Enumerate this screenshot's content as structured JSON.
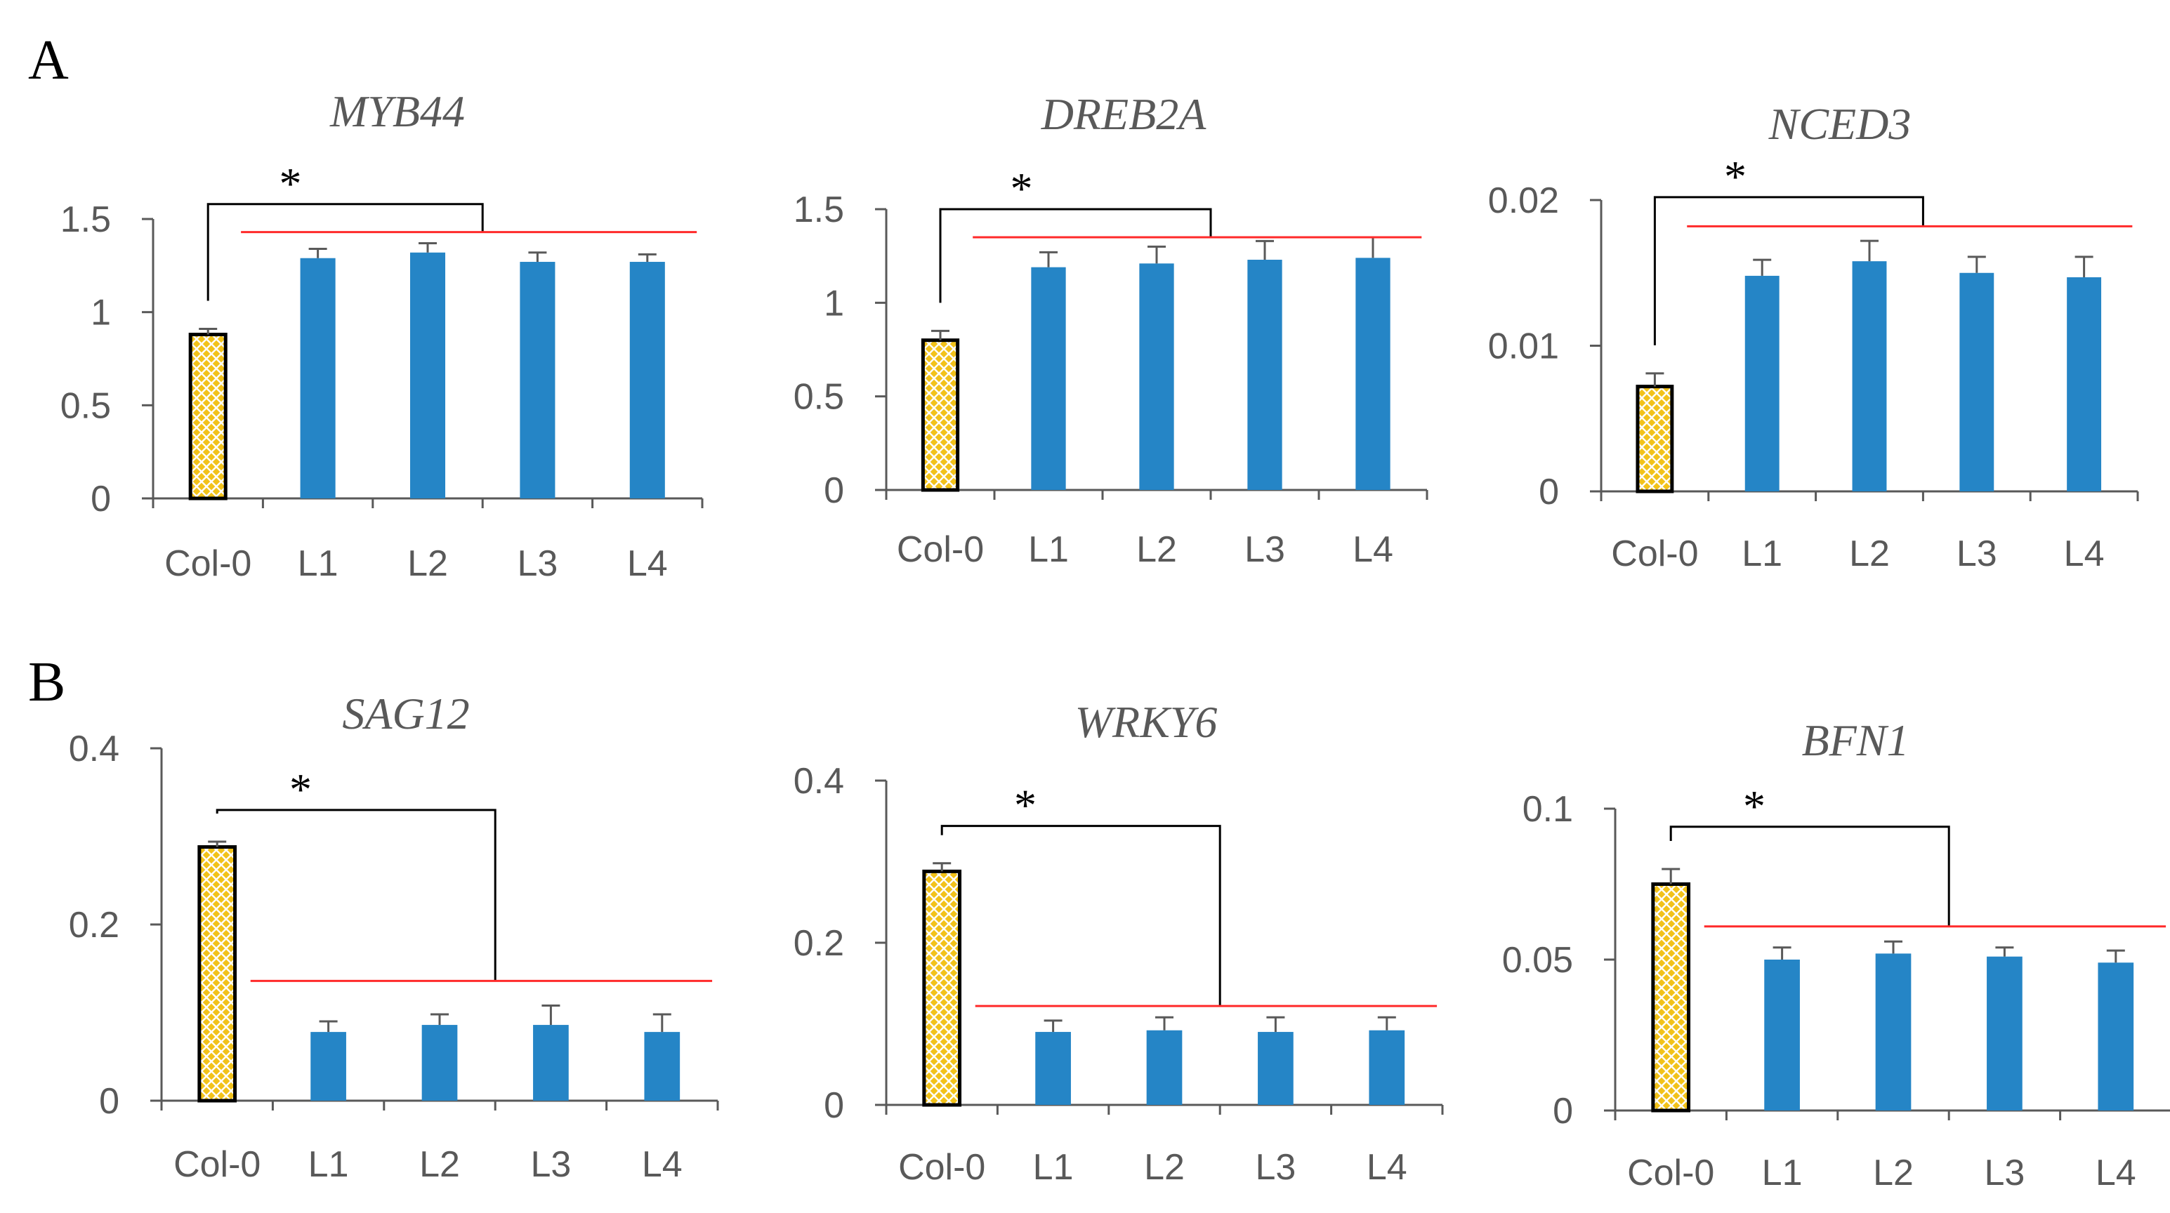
{
  "panels": [
    {
      "letter": "A"
    },
    {
      "letter": "B"
    }
  ],
  "colors": {
    "control_fill": "#f2c21a",
    "control_hatch": "#ffffff",
    "control_border": "#000000",
    "line_bar": "#2585c6",
    "red_line": "#ff2a2a",
    "axis": "#595959",
    "bracket": "#000000"
  },
  "chart_data": [
    {
      "type": "bar",
      "panel": "A",
      "title": "MYB44",
      "categories": [
        "Col-0",
        "L1",
        "L2",
        "L3",
        "L4"
      ],
      "values": [
        0.88,
        1.29,
        1.32,
        1.27,
        1.27
      ],
      "errors": [
        0.03,
        0.05,
        0.05,
        0.05,
        0.04
      ],
      "yticks": [
        0,
        0.5,
        1,
        1.5
      ],
      "ytick_labels": [
        "0",
        "0.5",
        "1",
        "1.5"
      ],
      "ylim": [
        0,
        1.5
      ],
      "significance": {
        "symbol": "*",
        "bracket_y": 1.58,
        "red_line_y": 1.43
      }
    },
    {
      "type": "bar",
      "panel": "A",
      "title": "DREB2A",
      "categories": [
        "Col-0",
        "L1",
        "L2",
        "L3",
        "L4"
      ],
      "values": [
        0.8,
        1.19,
        1.21,
        1.23,
        1.24
      ],
      "errors": [
        0.05,
        0.08,
        0.09,
        0.1,
        0.11
      ],
      "yticks": [
        0,
        0.5,
        1,
        1.5
      ],
      "ytick_labels": [
        "0",
        "0.5",
        "1",
        "1.5"
      ],
      "ylim": [
        0,
        1.5
      ],
      "significance": {
        "symbol": "*",
        "bracket_y": 1.5,
        "red_line_y": 1.35
      }
    },
    {
      "type": "bar",
      "panel": "A",
      "title": "NCED3",
      "categories": [
        "Col-0",
        "L1",
        "L2",
        "L3",
        "L4"
      ],
      "values": [
        0.0072,
        0.0148,
        0.0158,
        0.015,
        0.0147
      ],
      "errors": [
        0.0009,
        0.0011,
        0.0014,
        0.0011,
        0.0014
      ],
      "yticks": [
        0,
        0.01,
        0.02
      ],
      "ytick_labels": [
        "0",
        "0.01",
        "0.02"
      ],
      "ylim": [
        0,
        0.02
      ],
      "significance": {
        "symbol": "*",
        "bracket_y": 0.0202,
        "red_line_y": 0.0182
      }
    },
    {
      "type": "bar",
      "panel": "B",
      "title": "SAG12",
      "categories": [
        "Col-0",
        "L1",
        "L2",
        "L3",
        "L4"
      ],
      "values": [
        0.288,
        0.078,
        0.086,
        0.086,
        0.078
      ],
      "errors": [
        0.006,
        0.012,
        0.012,
        0.022,
        0.02
      ],
      "yticks": [
        0,
        0.2,
        0.4
      ],
      "ytick_labels": [
        "0",
        "0.2",
        "0.4"
      ],
      "ylim": [
        0,
        0.4
      ],
      "significance": {
        "symbol": "*",
        "bracket_y": 0.33,
        "red_line_y": 0.136
      }
    },
    {
      "type": "bar",
      "panel": "B",
      "title": "WRKY6",
      "categories": [
        "Col-0",
        "L1",
        "L2",
        "L3",
        "L4"
      ],
      "values": [
        0.288,
        0.09,
        0.092,
        0.09,
        0.092
      ],
      "errors": [
        0.01,
        0.014,
        0.016,
        0.018,
        0.016
      ],
      "yticks": [
        0,
        0.2,
        0.4
      ],
      "ytick_labels": [
        "0",
        "0.2",
        "0.4"
      ],
      "ylim": [
        0,
        0.4
      ],
      "significance": {
        "symbol": "*",
        "bracket_y": 0.344,
        "red_line_y": 0.122
      }
    },
    {
      "type": "bar",
      "panel": "B",
      "title": "BFN1",
      "categories": [
        "Col-0",
        "L1",
        "L2",
        "L3",
        "L4"
      ],
      "values": [
        0.075,
        0.05,
        0.052,
        0.051,
        0.049
      ],
      "errors": [
        0.005,
        0.004,
        0.004,
        0.003,
        0.004
      ],
      "yticks": [
        0,
        0.05,
        0.1
      ],
      "ytick_labels": [
        "0",
        "0.05",
        "0.1"
      ],
      "ylim": [
        0,
        0.1
      ],
      "significance": {
        "symbol": "*",
        "bracket_y": 0.094,
        "red_line_y": 0.061
      }
    }
  ]
}
